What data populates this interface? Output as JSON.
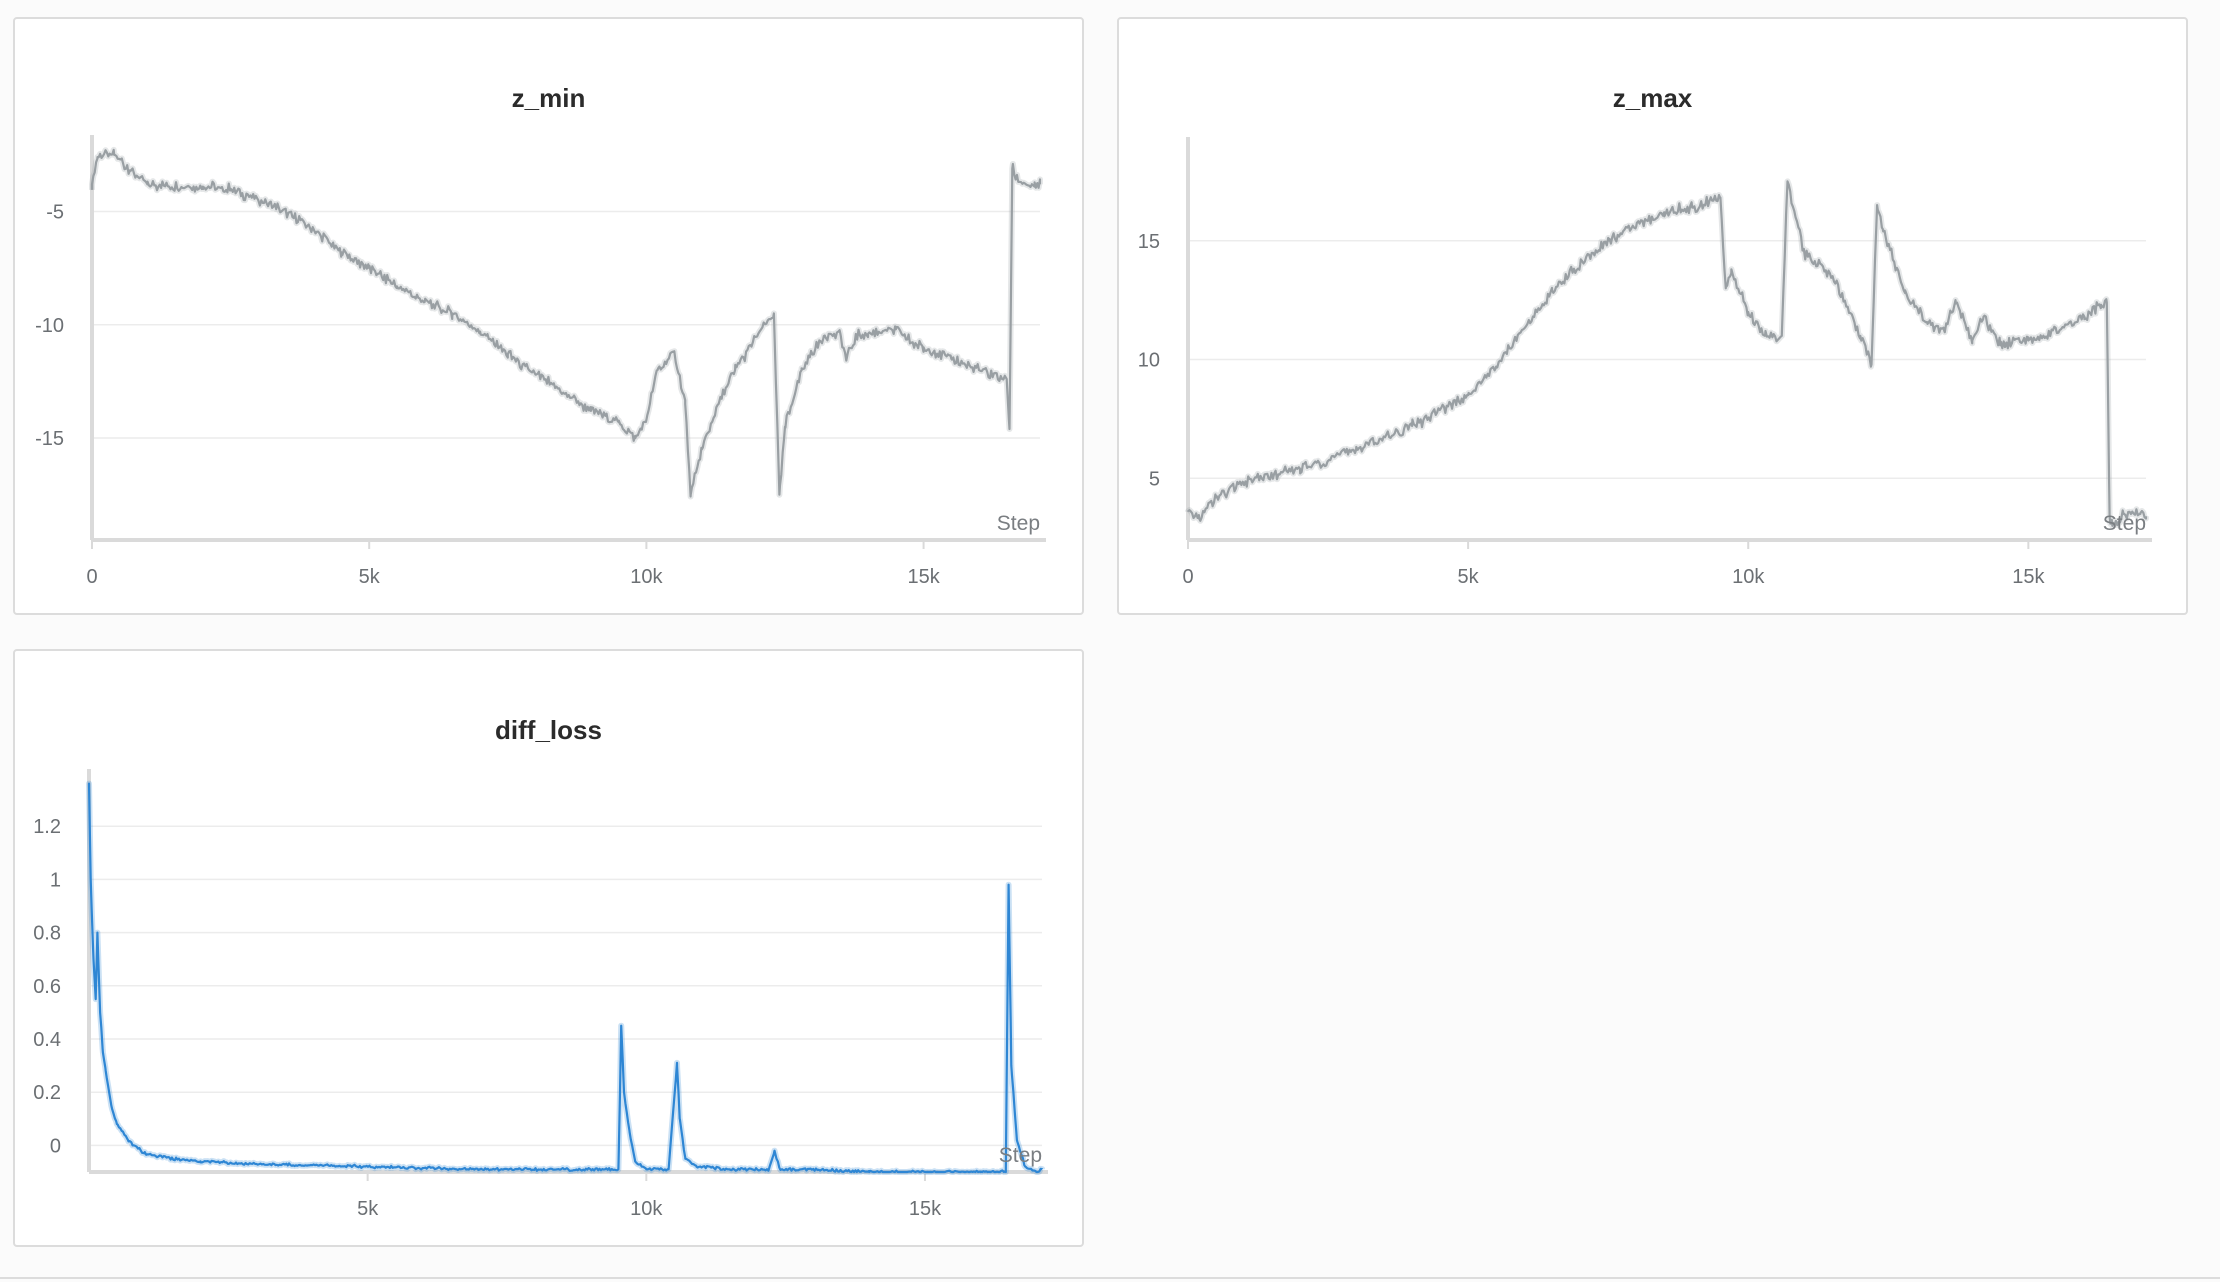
{
  "colors": {
    "gray_series": "#999fa3",
    "blue_series": "#2e86d4",
    "grid": "#ececec",
    "axis": "#dadada"
  },
  "chart_data": [
    {
      "type": "line",
      "title": "z_min",
      "xlabel": "Step",
      "ylabel": "",
      "xlim": [
        0,
        17100
      ],
      "ylim": [
        -19.5,
        -1.8
      ],
      "xticks": [
        {
          "v": 0,
          "label": "0"
        },
        {
          "v": 5000,
          "label": "5k"
        },
        {
          "v": 10000,
          "label": "10k"
        },
        {
          "v": 15000,
          "label": "15k"
        }
      ],
      "yticks": [
        {
          "v": -5,
          "label": "-5"
        },
        {
          "v": -10,
          "label": "-10"
        },
        {
          "v": -15,
          "label": "-15"
        }
      ],
      "series": [
        {
          "color": "#999fa3",
          "x": [
            0,
            100,
            400,
            700,
            1000,
            1500,
            2000,
            2500,
            3000,
            3500,
            4000,
            4500,
            5000,
            5500,
            6000,
            6500,
            7000,
            7500,
            8000,
            8500,
            9000,
            9500,
            9800,
            10000,
            10200,
            10500,
            10700,
            10800,
            11000,
            11300,
            11600,
            12000,
            12300,
            12400,
            12500,
            12800,
            13200,
            13500,
            13600,
            13800,
            14000,
            14500,
            14800,
            15000,
            15500,
            16000,
            16500,
            16550,
            16600,
            16700,
            17000,
            17100
          ],
          "y": [
            -3.8,
            -2.6,
            -2.5,
            -3.2,
            -3.8,
            -3.9,
            -3.9,
            -4.0,
            -4.5,
            -5.0,
            -5.8,
            -6.8,
            -7.5,
            -8.3,
            -9.0,
            -9.5,
            -10.3,
            -11.3,
            -12.2,
            -13.0,
            -13.8,
            -14.3,
            -15.0,
            -14.2,
            -12.0,
            -11.2,
            -13.5,
            -17.5,
            -15.5,
            -13.5,
            -12.0,
            -10.5,
            -9.5,
            -17.5,
            -14.5,
            -12.0,
            -10.5,
            -10.4,
            -11.5,
            -10.5,
            -10.4,
            -10.2,
            -10.8,
            -11.0,
            -11.5,
            -12.0,
            -12.4,
            -14.6,
            -3.1,
            -3.6,
            -3.9,
            -3.8
          ]
        }
      ]
    },
    {
      "type": "line",
      "title": "z_max",
      "xlabel": "Step",
      "ylabel": "",
      "xlim": [
        0,
        17100
      ],
      "ylim": [
        2.4,
        19.2
      ],
      "xticks": [
        {
          "v": 0,
          "label": "0"
        },
        {
          "v": 5000,
          "label": "5k"
        },
        {
          "v": 10000,
          "label": "10k"
        },
        {
          "v": 15000,
          "label": "15k"
        }
      ],
      "yticks": [
        {
          "v": 5,
          "label": "5"
        },
        {
          "v": 10,
          "label": "10"
        },
        {
          "v": 15,
          "label": "15"
        }
      ],
      "series": [
        {
          "color": "#999fa3",
          "x": [
            0,
            200,
            500,
            1000,
            2000,
            3000,
            4000,
            5000,
            5500,
            6000,
            6500,
            7000,
            7500,
            8000,
            8500,
            9000,
            9500,
            9600,
            9700,
            10000,
            10300,
            10600,
            10700,
            11000,
            11500,
            12000,
            12200,
            12300,
            12400,
            12800,
            13200,
            13500,
            13700,
            14000,
            14200,
            14500,
            15000,
            15500,
            16000,
            16300,
            16400,
            16450,
            16500,
            16700,
            17000,
            17100
          ],
          "y": [
            3.6,
            3.3,
            4.2,
            4.8,
            5.4,
            6.2,
            7.2,
            8.5,
            9.7,
            11.3,
            12.9,
            14.0,
            15.0,
            15.6,
            16.2,
            16.4,
            16.8,
            13.0,
            13.8,
            12.0,
            11.0,
            11.0,
            17.5,
            14.5,
            13.5,
            11.0,
            9.8,
            16.5,
            15.5,
            12.8,
            11.5,
            11.2,
            12.5,
            10.8,
            11.8,
            10.6,
            10.8,
            11.2,
            11.8,
            12.3,
            12.4,
            3.4,
            3.0,
            3.5,
            3.5,
            3.4
          ]
        }
      ]
    },
    {
      "type": "line",
      "title": "diff_loss",
      "xlabel": "Step",
      "ylabel": "",
      "xlim": [
        0,
        17100
      ],
      "ylim": [
        -0.1,
        1.4
      ],
      "xticks": [
        {
          "v": 5000,
          "label": "5k"
        },
        {
          "v": 10000,
          "label": "10k"
        },
        {
          "v": 15000,
          "label": "15k"
        }
      ],
      "yticks": [
        {
          "v": 0,
          "label": "0"
        },
        {
          "v": 0.2,
          "label": "0.2"
        },
        {
          "v": 0.4,
          "label": "0.4"
        },
        {
          "v": 0.6,
          "label": "0.6"
        },
        {
          "v": 0.8,
          "label": "0.8"
        },
        {
          "v": 1,
          "label": "1"
        },
        {
          "v": 1.2,
          "label": "1.2"
        }
      ],
      "series": [
        {
          "color": "#2e86d4",
          "x": [
            0,
            30,
            80,
            120,
            150,
            200,
            250,
            300,
            400,
            500,
            700,
            1000,
            1500,
            2000,
            3000,
            5000,
            7000,
            9000,
            9500,
            9550,
            9600,
            9700,
            9800,
            10000,
            10400,
            10550,
            10600,
            10700,
            10900,
            11500,
            12200,
            12300,
            12400,
            13000,
            14000,
            15000,
            16000,
            16450,
            16500,
            16550,
            16650,
            16800,
            17000,
            17100
          ],
          "y": [
            1.36,
            1.0,
            0.7,
            0.55,
            0.8,
            0.5,
            0.35,
            0.28,
            0.15,
            0.08,
            0.02,
            -0.03,
            -0.05,
            -0.06,
            -0.07,
            -0.08,
            -0.09,
            -0.09,
            -0.09,
            0.45,
            0.2,
            0.05,
            -0.06,
            -0.09,
            -0.09,
            0.31,
            0.1,
            -0.05,
            -0.08,
            -0.09,
            -0.09,
            -0.02,
            -0.09,
            -0.09,
            -0.1,
            -0.1,
            -0.1,
            -0.1,
            0.98,
            0.3,
            0.02,
            -0.08,
            -0.1,
            -0.09
          ]
        }
      ]
    }
  ]
}
